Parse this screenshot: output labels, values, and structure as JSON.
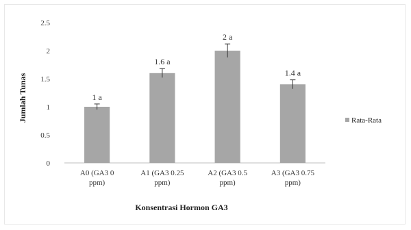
{
  "chart_data": {
    "type": "bar",
    "title": "",
    "xlabel": "Konsentrasi Hormon GA3",
    "ylabel": "Jumlah Tunas",
    "ylim": [
      0,
      2.5
    ],
    "yticks": [
      "0",
      "0.5",
      "1",
      "1.5",
      "2",
      "2.5"
    ],
    "categories": [
      [
        "A0 (GA3 0",
        "ppm)"
      ],
      [
        "A1 (GA3 0.25",
        "ppm)"
      ],
      [
        "A2 (GA3 0.5",
        "ppm)"
      ],
      [
        "A3 (GA3 0.75",
        "ppm)"
      ]
    ],
    "series": [
      {
        "name": "Rata-Rata",
        "values": [
          1,
          1.6,
          2,
          1.4
        ],
        "errors": [
          0.05,
          0.08,
          0.12,
          0.08
        ],
        "labels": [
          "1 a",
          "1.6 a",
          "2 a",
          "1.4 a"
        ],
        "color": "#a6a6a6"
      }
    ],
    "grid": false,
    "legend": "right"
  }
}
